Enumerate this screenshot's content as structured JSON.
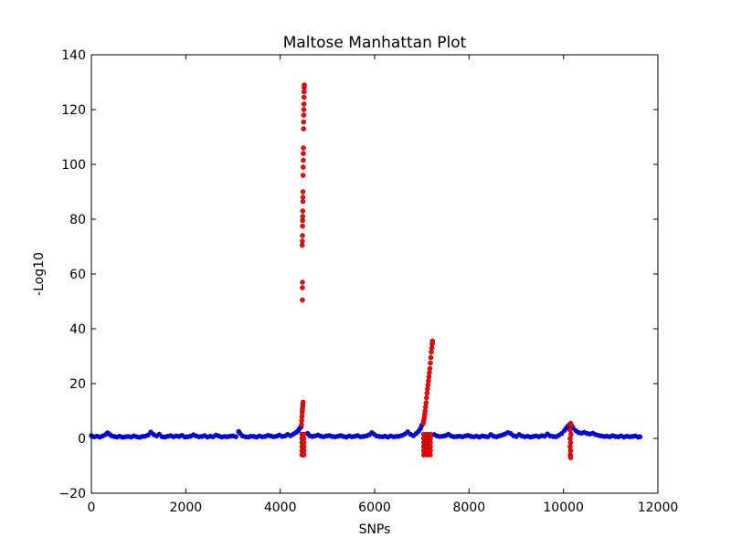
{
  "chart_data": {
    "type": "scatter",
    "title": "Maltose Manhattan Plot",
    "xlabel": "SNPs",
    "ylabel": "-Log10",
    "xlim": [
      0,
      12000
    ],
    "ylim": [
      -20,
      140
    ],
    "xticks": [
      0,
      2000,
      4000,
      6000,
      8000,
      10000,
      12000
    ],
    "yticks": [
      -20,
      0,
      20,
      40,
      60,
      80,
      100,
      120,
      140
    ],
    "grid": false,
    "colors": {
      "background": "#blue",
      "baseline": "#0000ff",
      "significant": "#ff0000"
    },
    "series": [
      {
        "color": "#0000ff",
        "points": [
          [
            0,
            1.0
          ],
          [
            60,
            0.6
          ],
          [
            120,
            0.8
          ],
          [
            180,
            0.5
          ],
          [
            240,
            0.9
          ],
          [
            300,
            1.4
          ],
          [
            340,
            2.0
          ],
          [
            380,
            1.6
          ],
          [
            420,
            1.0
          ],
          [
            480,
            0.7
          ],
          [
            540,
            0.5
          ],
          [
            600,
            0.8
          ],
          [
            660,
            0.4
          ],
          [
            720,
            0.6
          ],
          [
            780,
            0.7
          ],
          [
            840,
            0.5
          ],
          [
            900,
            0.9
          ],
          [
            960,
            0.6
          ],
          [
            1020,
            0.4
          ],
          [
            1080,
            0.7
          ],
          [
            1140,
            0.8
          ],
          [
            1200,
            1.2
          ],
          [
            1260,
            2.3
          ],
          [
            1320,
            1.4
          ],
          [
            1380,
            0.9
          ],
          [
            1440,
            1.5
          ],
          [
            1500,
            0.6
          ],
          [
            1560,
            0.5
          ],
          [
            1620,
            0.8
          ],
          [
            1680,
            1.0
          ],
          [
            1740,
            0.6
          ],
          [
            1800,
            0.9
          ],
          [
            1860,
            0.7
          ],
          [
            1920,
            1.1
          ],
          [
            1980,
            0.5
          ],
          [
            2040,
            0.6
          ],
          [
            2100,
            0.8
          ],
          [
            2160,
            1.3
          ],
          [
            2220,
            0.9
          ],
          [
            2280,
            0.6
          ],
          [
            2340,
            0.7
          ],
          [
            2400,
            1.0
          ],
          [
            2460,
            0.5
          ],
          [
            2520,
            0.8
          ],
          [
            2580,
            0.6
          ],
          [
            2640,
            1.2
          ],
          [
            2700,
            0.9
          ],
          [
            2760,
            0.5
          ],
          [
            2820,
            0.7
          ],
          [
            2880,
            0.6
          ],
          [
            2940,
            0.8
          ],
          [
            3000,
            0.9
          ],
          [
            3060,
            0.6
          ],
          [
            3120,
            2.5
          ],
          [
            3150,
            1.8
          ],
          [
            3200,
            0.9
          ],
          [
            3260,
            0.6
          ],
          [
            3320,
            0.5
          ],
          [
            3380,
            0.8
          ],
          [
            3440,
            0.7
          ],
          [
            3500,
            0.5
          ],
          [
            3560,
            0.9
          ],
          [
            3620,
            0.6
          ],
          [
            3680,
            0.7
          ],
          [
            3740,
            1.1
          ],
          [
            3800,
            0.9
          ],
          [
            3860,
            0.6
          ],
          [
            3920,
            0.8
          ],
          [
            3980,
            1.2
          ],
          [
            4040,
            0.7
          ],
          [
            4100,
            0.9
          ],
          [
            4160,
            1.4
          ],
          [
            4220,
            1.0
          ],
          [
            4280,
            1.6
          ],
          [
            4340,
            2.2
          ],
          [
            4380,
            2.8
          ],
          [
            4410,
            3.6
          ],
          [
            4440,
            4.2
          ],
          [
            4580,
            1.8
          ],
          [
            4620,
            1.0
          ],
          [
            4680,
            0.7
          ],
          [
            4740,
            0.9
          ],
          [
            4800,
            1.2
          ],
          [
            4860,
            0.8
          ],
          [
            4920,
            0.6
          ],
          [
            4980,
            0.9
          ],
          [
            5040,
            1.0
          ],
          [
            5100,
            0.7
          ],
          [
            5160,
            0.6
          ],
          [
            5220,
            0.8
          ],
          [
            5280,
            1.0
          ],
          [
            5340,
            0.7
          ],
          [
            5400,
            0.5
          ],
          [
            5460,
            0.9
          ],
          [
            5520,
            0.6
          ],
          [
            5580,
            0.8
          ],
          [
            5640,
            1.0
          ],
          [
            5700,
            0.6
          ],
          [
            5760,
            0.7
          ],
          [
            5820,
            0.9
          ],
          [
            5880,
            1.3
          ],
          [
            5940,
            2.1
          ],
          [
            5980,
            1.6
          ],
          [
            6040,
            0.9
          ],
          [
            6100,
            0.7
          ],
          [
            6160,
            0.6
          ],
          [
            6220,
            0.8
          ],
          [
            6280,
            0.5
          ],
          [
            6340,
            0.9
          ],
          [
            6400,
            0.6
          ],
          [
            6460,
            0.7
          ],
          [
            6520,
            0.8
          ],
          [
            6580,
            1.1
          ],
          [
            6640,
            1.6
          ],
          [
            6700,
            2.4
          ],
          [
            6760,
            1.5
          ],
          [
            6820,
            1.0
          ],
          [
            6880,
            1.8
          ],
          [
            6930,
            2.6
          ],
          [
            6970,
            3.6
          ],
          [
            7000,
            4.8
          ],
          [
            7260,
            1.4
          ],
          [
            7320,
            0.9
          ],
          [
            7380,
            0.7
          ],
          [
            7440,
            0.8
          ],
          [
            7500,
            1.0
          ],
          [
            7560,
            1.5
          ],
          [
            7620,
            0.9
          ],
          [
            7680,
            0.6
          ],
          [
            7740,
            0.7
          ],
          [
            7800,
            0.8
          ],
          [
            7860,
            0.6
          ],
          [
            7920,
            0.9
          ],
          [
            7980,
            1.1
          ],
          [
            8040,
            0.7
          ],
          [
            8100,
            0.6
          ],
          [
            8160,
            0.8
          ],
          [
            8220,
            0.5
          ],
          [
            8280,
            0.9
          ],
          [
            8340,
            0.7
          ],
          [
            8400,
            0.6
          ],
          [
            8460,
            1.4
          ],
          [
            8520,
            0.8
          ],
          [
            8580,
            0.6
          ],
          [
            8640,
            0.9
          ],
          [
            8700,
            1.2
          ],
          [
            8760,
            1.6
          ],
          [
            8820,
            2.1
          ],
          [
            8880,
            1.8
          ],
          [
            8940,
            1.0
          ],
          [
            9000,
            0.7
          ],
          [
            9060,
            1.4
          ],
          [
            9120,
            0.9
          ],
          [
            9180,
            0.6
          ],
          [
            9240,
            0.8
          ],
          [
            9300,
            0.5
          ],
          [
            9360,
            0.7
          ],
          [
            9420,
            0.9
          ],
          [
            9480,
            0.6
          ],
          [
            9540,
            1.0
          ],
          [
            9600,
            0.8
          ],
          [
            9660,
            1.6
          ],
          [
            9720,
            0.9
          ],
          [
            9780,
            0.7
          ],
          [
            9840,
            0.6
          ],
          [
            9900,
            1.1
          ],
          [
            9960,
            1.8
          ],
          [
            10020,
            2.9
          ],
          [
            10060,
            3.8
          ],
          [
            10100,
            4.6
          ],
          [
            10200,
            3.9
          ],
          [
            10260,
            2.8
          ],
          [
            10320,
            2.1
          ],
          [
            10380,
            1.9
          ],
          [
            10440,
            2.2
          ],
          [
            10500,
            1.8
          ],
          [
            10560,
            1.6
          ],
          [
            10620,
            1.9
          ],
          [
            10680,
            1.4
          ],
          [
            10740,
            1.1
          ],
          [
            10800,
            0.9
          ],
          [
            10860,
            0.7
          ],
          [
            10920,
            0.8
          ],
          [
            10980,
            0.6
          ],
          [
            11040,
            1.0
          ],
          [
            11100,
            0.7
          ],
          [
            11160,
            0.6
          ],
          [
            11220,
            0.9
          ],
          [
            11280,
            0.5
          ],
          [
            11340,
            0.8
          ],
          [
            11400,
            0.6
          ],
          [
            11460,
            0.7
          ],
          [
            11520,
            0.9
          ],
          [
            11580,
            0.5
          ],
          [
            11620,
            0.6
          ]
        ]
      },
      {
        "color": "#ff0000",
        "points": [
          [
            4450,
            5.0
          ],
          [
            4455,
            6.5
          ],
          [
            4460,
            8.0
          ],
          [
            4465,
            9.5
          ],
          [
            4470,
            10.5
          ],
          [
            4475,
            11.5
          ],
          [
            4480,
            12.5
          ],
          [
            4485,
            13.2
          ],
          [
            4470,
            50.5
          ],
          [
            4470,
            55.0
          ],
          [
            4472,
            57.0
          ],
          [
            4465,
            70.5
          ],
          [
            4468,
            72.0
          ],
          [
            4470,
            74.0
          ],
          [
            4472,
            77.5
          ],
          [
            4474,
            79.5
          ],
          [
            4476,
            81.0
          ],
          [
            4478,
            83.0
          ],
          [
            4480,
            86.5
          ],
          [
            4481,
            88.0
          ],
          [
            4482,
            90.0
          ],
          [
            4484,
            96.0
          ],
          [
            4486,
            99.0
          ],
          [
            4488,
            101.5
          ],
          [
            4490,
            104.0
          ],
          [
            4492,
            106.0
          ],
          [
            4494,
            113.0
          ],
          [
            4496,
            115.5
          ],
          [
            4498,
            118.0
          ],
          [
            4500,
            120.0
          ],
          [
            4502,
            122.0
          ],
          [
            4504,
            124.5
          ],
          [
            4506,
            126.5
          ],
          [
            4508,
            128.0
          ],
          [
            4510,
            129.0
          ],
          [
            4460,
            1.5
          ],
          [
            4460,
            0.0
          ],
          [
            4460,
            -1.5
          ],
          [
            4460,
            -3.0
          ],
          [
            4460,
            -4.5
          ],
          [
            4460,
            -6.0
          ],
          [
            4500,
            1.5
          ],
          [
            4500,
            0.0
          ],
          [
            4500,
            -1.5
          ],
          [
            4500,
            -3.0
          ],
          [
            4500,
            -4.5
          ],
          [
            4500,
            -6.0
          ],
          [
            7030,
            5.5
          ],
          [
            7040,
            6.5
          ],
          [
            7050,
            7.5
          ],
          [
            7060,
            8.8
          ],
          [
            7070,
            10.0
          ],
          [
            7080,
            11.5
          ],
          [
            7090,
            13.0
          ],
          [
            7100,
            14.8
          ],
          [
            7110,
            16.5
          ],
          [
            7120,
            18.0
          ],
          [
            7130,
            19.5
          ],
          [
            7140,
            21.0
          ],
          [
            7150,
            22.5
          ],
          [
            7160,
            24.0
          ],
          [
            7170,
            25.5
          ],
          [
            7180,
            27.5
          ],
          [
            7190,
            29.5
          ],
          [
            7200,
            31.5
          ],
          [
            7210,
            33.0
          ],
          [
            7220,
            34.5
          ],
          [
            7225,
            35.5
          ],
          [
            7040,
            1.5
          ],
          [
            7040,
            0.0
          ],
          [
            7040,
            -1.5
          ],
          [
            7040,
            -3.0
          ],
          [
            7040,
            -4.5
          ],
          [
            7040,
            -6.0
          ],
          [
            7110,
            1.5
          ],
          [
            7110,
            0.0
          ],
          [
            7110,
            -1.5
          ],
          [
            7110,
            -3.0
          ],
          [
            7110,
            -4.5
          ],
          [
            7110,
            -6.0
          ],
          [
            7180,
            1.5
          ],
          [
            7180,
            0.0
          ],
          [
            7180,
            -1.5
          ],
          [
            7180,
            -3.0
          ],
          [
            7180,
            -4.5
          ],
          [
            7180,
            -6.0
          ],
          [
            10130,
            5.0
          ],
          [
            10150,
            5.5
          ],
          [
            10170,
            4.8
          ],
          [
            10140,
            3.0
          ],
          [
            10160,
            1.5
          ],
          [
            10140,
            0.0
          ],
          [
            10150,
            -1.5
          ],
          [
            10140,
            -3.0
          ],
          [
            10150,
            -4.5
          ],
          [
            10145,
            -6.0
          ],
          [
            10150,
            -7.0
          ]
        ]
      }
    ]
  }
}
